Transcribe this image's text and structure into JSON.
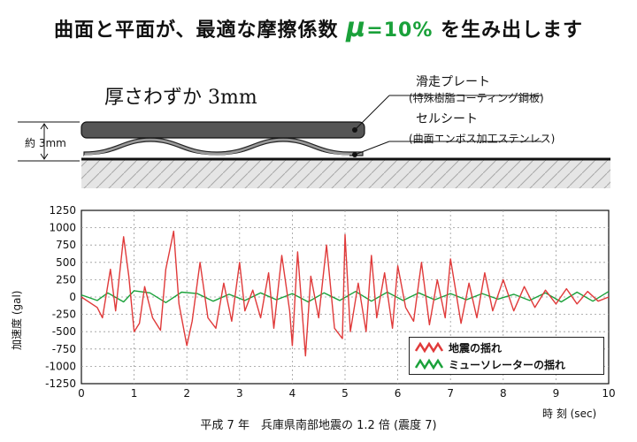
{
  "headline": {
    "text_before": "曲面と平面が、最適な摩擦係数",
    "mu": "μ",
    "eq": "=10%",
    "text_after": "を生み出します"
  },
  "diagram": {
    "thickness_label": "厚さわずか 3mm",
    "plate_label": "滑走プレート",
    "plate_sub": "(特殊樹脂コーティング鋼板)",
    "cell_label": "セルシート",
    "cell_sub": "(曲面エンボス加工ステンレス)",
    "dim_label": "約 3mm"
  },
  "chart_data": {
    "type": "line",
    "title": "",
    "caption": "平成 7 年　兵庫県南部地震の 1.2 倍 (震度 7)",
    "xlabel": "時 刻 (sec)",
    "ylabel": "加速度 (gal)",
    "xlim": [
      0,
      10
    ],
    "ylim": [
      -1250,
      1250
    ],
    "xticks": [
      "0",
      "1",
      "2",
      "3",
      "4",
      "5",
      "6",
      "7",
      "8",
      "9",
      "10"
    ],
    "yticks": [
      "1250",
      "1000",
      "750",
      "500",
      "250",
      "0",
      "-250",
      "-500",
      "-750",
      "-1000",
      "-1250"
    ],
    "grid": true,
    "legend_position": "bottom-right",
    "series": [
      {
        "name": "地震の揺れ",
        "color": "#e03a3a",
        "x": [
          0,
          0.3,
          0.4,
          0.55,
          0.65,
          0.8,
          0.9,
          1.0,
          1.1,
          1.2,
          1.35,
          1.5,
          1.6,
          1.75,
          1.85,
          2.0,
          2.1,
          2.25,
          2.4,
          2.55,
          2.7,
          2.85,
          3.0,
          3.1,
          3.25,
          3.4,
          3.55,
          3.65,
          3.8,
          3.95,
          4.0,
          4.1,
          4.25,
          4.35,
          4.5,
          4.65,
          4.8,
          4.95,
          5.0,
          5.1,
          5.25,
          5.4,
          5.5,
          5.6,
          5.75,
          5.9,
          6.0,
          6.15,
          6.3,
          6.45,
          6.6,
          6.75,
          6.9,
          7.0,
          7.2,
          7.35,
          7.5,
          7.65,
          7.8,
          8.0,
          8.2,
          8.4,
          8.6,
          8.8,
          9.0,
          9.2,
          9.4,
          9.6,
          9.8,
          10.0
        ],
        "y": [
          0,
          -150,
          -300,
          400,
          -200,
          870,
          300,
          -500,
          -380,
          150,
          -300,
          -480,
          400,
          950,
          -100,
          -700,
          -350,
          500,
          -300,
          -450,
          200,
          -350,
          500,
          -200,
          100,
          -300,
          350,
          -450,
          600,
          -200,
          -700,
          650,
          -850,
          300,
          -300,
          750,
          -450,
          -600,
          900,
          -500,
          200,
          -500,
          600,
          -300,
          350,
          -450,
          450,
          -150,
          -350,
          500,
          -400,
          250,
          -300,
          550,
          -380,
          200,
          -300,
          350,
          -200,
          250,
          -200,
          150,
          -150,
          100,
          -100,
          120,
          -100,
          80,
          -60,
          0
        ]
      },
      {
        "name": "ミューソレーターの揺れ",
        "color": "#1aa13a",
        "x": [
          0,
          0.3,
          0.5,
          0.8,
          1.0,
          1.3,
          1.6,
          1.9,
          2.2,
          2.5,
          2.8,
          3.1,
          3.4,
          3.7,
          4.0,
          4.3,
          4.6,
          4.9,
          5.2,
          5.5,
          5.8,
          6.1,
          6.4,
          6.7,
          7.0,
          7.3,
          7.6,
          7.9,
          8.2,
          8.5,
          8.8,
          9.1,
          9.4,
          9.7,
          10.0
        ],
        "y": [
          30,
          -50,
          60,
          -70,
          90,
          60,
          -80,
          70,
          50,
          -60,
          40,
          -50,
          60,
          -40,
          50,
          -70,
          60,
          -50,
          80,
          -60,
          70,
          -50,
          60,
          -40,
          50,
          -40,
          50,
          -30,
          40,
          -50,
          60,
          -70,
          70,
          -60,
          80
        ]
      }
    ]
  }
}
